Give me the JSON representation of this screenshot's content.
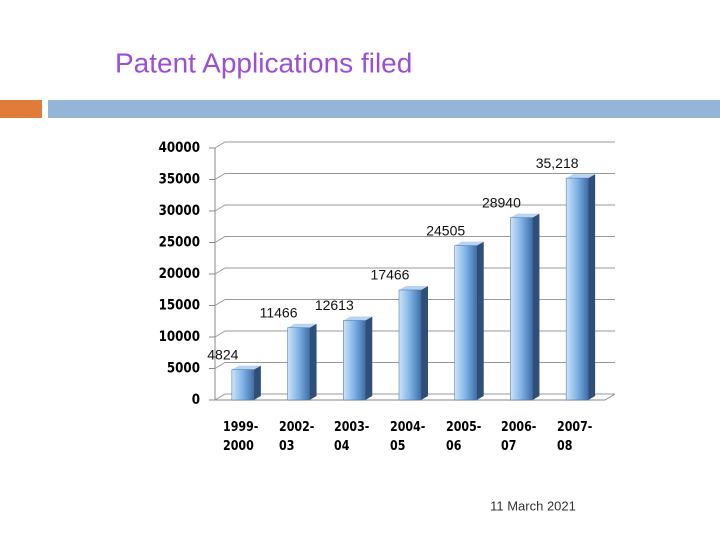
{
  "chart_data": {
    "type": "bar",
    "title": "Patent Applications filed",
    "categories": [
      "1999-2000",
      "2002-03",
      "2003-04",
      "2004-05",
      "2005-06",
      "2006-07",
      "2007-08"
    ],
    "values": [
      4824,
      11466,
      12613,
      17466,
      24505,
      28940,
      35218
    ],
    "value_labels": [
      "4824",
      "11466",
      "12613",
      "17466",
      "24505",
      "28940",
      "35,218"
    ],
    "color": "#7fb2e6",
    "ylim": [
      0,
      40000
    ],
    "yticks": [
      0,
      5000,
      10000,
      15000,
      20000,
      25000,
      30000,
      35000,
      40000
    ],
    "grid": true
  },
  "date": "11 March 2021"
}
